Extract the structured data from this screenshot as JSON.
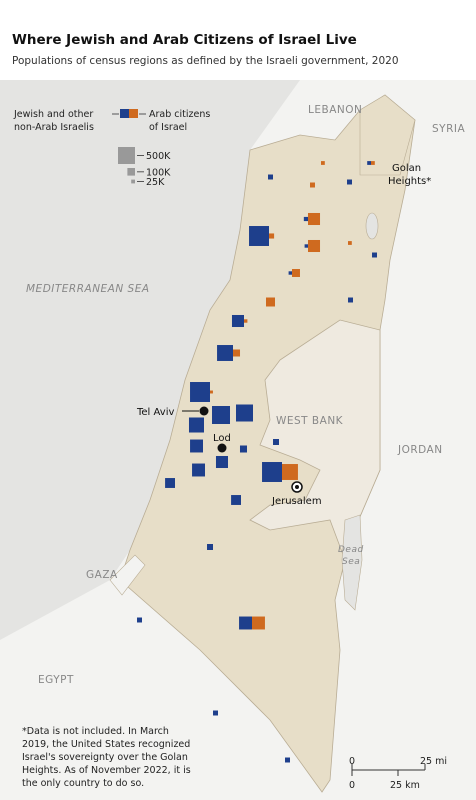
{
  "title": "Where Jewish and Arab Citizens of Israel Live",
  "subtitle": "Populations of census regions as defined by the Israeli government, 2020",
  "colors": {
    "jewish": "#1e3f8c",
    "arab": "#cf6a1f"
  },
  "legend": {
    "jewish_label": [
      "Jewish and other",
      "non-Arab Israelis"
    ],
    "arab_label": [
      "Arab citizens",
      "of Israel"
    ],
    "sizes": [
      {
        "value": 500000,
        "label": "500K"
      },
      {
        "value": 100000,
        "label": "100K"
      },
      {
        "value": 25000,
        "label": "25K"
      }
    ]
  },
  "places": {
    "lebanon": "LEBANON",
    "syria": "SYRIA",
    "golan": [
      "Golan",
      "Heights*"
    ],
    "sea": "MEDITERRANEAN SEA",
    "west_bank": "WEST BANK",
    "jordan": "JORDAN",
    "gaza": "GAZA",
    "egypt": "EGYPT",
    "dead_sea": [
      "Dead",
      "Sea"
    ],
    "tel_aviv": "Tel Aviv",
    "lod": "Lod",
    "jerusalem": "Jerusalem"
  },
  "note": [
    "*Data is not included. In March",
    "2019, the United States recognized",
    "Israel's sovereignty over the Golan",
    "Heights. As of November 2022, it is",
    "the only country to do so."
  ],
  "scale": {
    "miles": [
      "0",
      "25 mi"
    ],
    "km": [
      "0",
      "25 km"
    ]
  },
  "regions": [
    {
      "jewish": 690000,
      "arab": 45000
    },
    {
      "jewish": 30000,
      "arab": 250000
    },
    {
      "jewish": 20000,
      "arab": 250000
    },
    {
      "jewish": 440000,
      "arab": 85000
    },
    {
      "jewish": 690000,
      "arab": 15000
    },
    {
      "jewish": 560000,
      "arab": null
    },
    {
      "jewish": 500000,
      "arab": null
    },
    {
      "jewish": 390000,
      "arab": null
    },
    {
      "jewish": 290000,
      "arab": null
    },
    {
      "jewish": 250000,
      "arab": null
    },
    {
      "jewish": 290000,
      "arab": null
    },
    {
      "jewish": 690000,
      "arab": 440000
    },
    {
      "jewish": 250000,
      "arab": 20000
    },
    {
      "jewish": null,
      "arab": 140000
    },
    {
      "jewish": 20000,
      "arab": 110000
    },
    {
      "jewish": 170000,
      "arab": null
    },
    {
      "jewish": 170000,
      "arab": null
    },
    {
      "jewish": 62000,
      "arab": null
    },
    {
      "jewish": 290000,
      "arab": 290000
    },
    {
      "jewish": 43000,
      "arab": null
    },
    {
      "jewish": 43000,
      "arab": null
    },
    {
      "jewish": 43000,
      "arab": null
    },
    {
      "jewish": 85000,
      "arab": null
    },
    {
      "jewish": 62000,
      "arab": null
    },
    {
      "jewish": 43000,
      "arab": null
    },
    {
      "jewish": null,
      "arab": 43000
    },
    {
      "jewish": 43000,
      "arab": null
    },
    {
      "jewish": null,
      "arab": 25000
    },
    {
      "jewish": 43000,
      "arab": null
    },
    {
      "jewish": 43000,
      "arab": null
    },
    {
      "jewish": 25000,
      "arab": 25000
    },
    {
      "jewish": null,
      "arab": 25000
    }
  ]
}
